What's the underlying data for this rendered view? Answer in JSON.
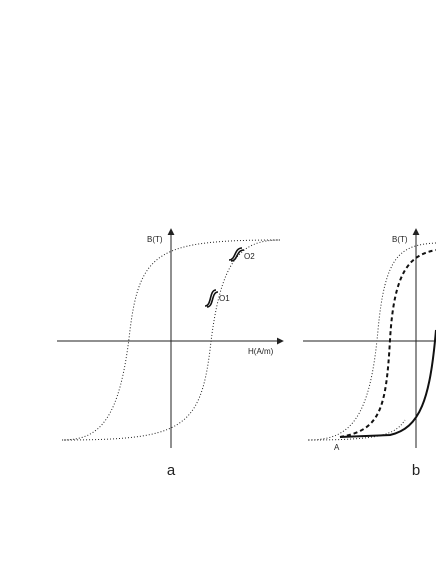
{
  "panels": [
    {
      "y_axis_label": "B(T)",
      "x_axis_label": "H(A/m)",
      "points": [
        "O1",
        "O2"
      ],
      "caption": "a"
    },
    {
      "y_axis_label": "B(T)",
      "points": [
        "A"
      ],
      "caption": "b"
    }
  ]
}
